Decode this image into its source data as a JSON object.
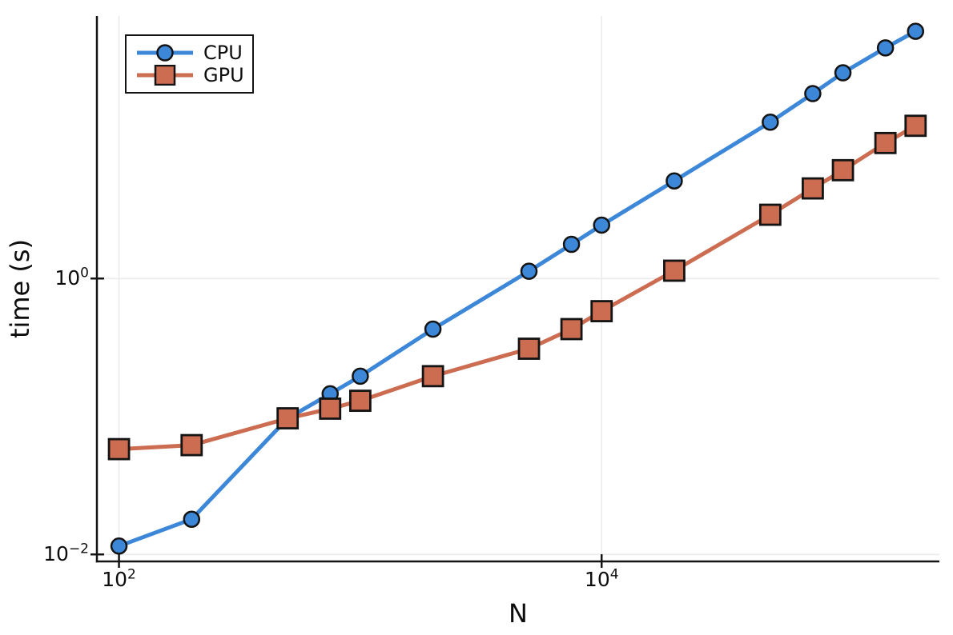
{
  "chart_data": {
    "type": "line",
    "title": "",
    "xlabel": "N",
    "ylabel": "time (s)",
    "xscale": "log",
    "yscale": "log",
    "xlim": [
      81,
      251000
    ],
    "ylim": [
      0.0089,
      80
    ],
    "grid": true,
    "x": [
      100,
      200,
      500,
      750,
      1000,
      2000,
      5000,
      7500,
      10000,
      20000,
      50000,
      75000,
      100000,
      150000,
      200000
    ],
    "series": [
      {
        "name": "CPU",
        "marker": "circle",
        "color": "#3d87d9",
        "values": [
          0.0115,
          0.018,
          0.097,
          0.146,
          0.196,
          0.43,
          1.13,
          1.77,
          2.44,
          5.1,
          13.6,
          21.9,
          31.0,
          47.0,
          62.0
        ]
      },
      {
        "name": "GPU",
        "marker": "square",
        "color": "#cc6c51",
        "values": [
          0.058,
          0.062,
          0.097,
          0.114,
          0.13,
          0.196,
          0.31,
          0.43,
          0.58,
          1.14,
          2.9,
          4.5,
          6.1,
          9.6,
          12.8
        ]
      }
    ],
    "xticks": {
      "base": 10,
      "exponents": [
        2,
        4
      ]
    },
    "yticks": {
      "base": 10,
      "exponents": [
        -2,
        0
      ]
    },
    "legend": {
      "position": "top-left",
      "entries": [
        "CPU",
        "GPU"
      ]
    },
    "styles": {
      "grid_color": "#ebebeb",
      "axis_color": "#141414",
      "marker_stroke": "#141414",
      "background": "#ffffff"
    }
  }
}
